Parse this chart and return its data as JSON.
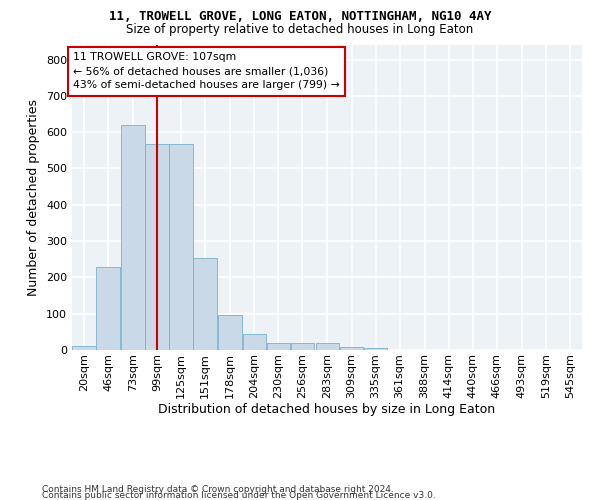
{
  "title": "11, TROWELL GROVE, LONG EATON, NOTTINGHAM, NG10 4AY",
  "subtitle": "Size of property relative to detached houses in Long Eaton",
  "xlabel": "Distribution of detached houses by size in Long Eaton",
  "ylabel": "Number of detached properties",
  "bar_color": "#c9d9e8",
  "bar_edge_color": "#7ab0cc",
  "background_color": "#edf2f7",
  "grid_color": "#ffffff",
  "annotation_line_color": "#cc0000",
  "annotation_box_color": "#cc0000",
  "property_line_x": 99,
  "annotation_text_line1": "11 TROWELL GROVE: 107sqm",
  "annotation_text_line2": "← 56% of detached houses are smaller (1,036)",
  "annotation_text_line3": "43% of semi-detached houses are larger (799) →",
  "footnote_line1": "Contains HM Land Registry data © Crown copyright and database right 2024.",
  "footnote_line2": "Contains public sector information licensed under the Open Government Licence v3.0.",
  "bin_centers": [
    20,
    46,
    73,
    99,
    125,
    151,
    178,
    204,
    230,
    256,
    283,
    309,
    335,
    361,
    388,
    414,
    440,
    466,
    493,
    519,
    545
  ],
  "bar_heights": [
    10,
    228,
    620,
    567,
    567,
    253,
    97,
    43,
    20,
    20,
    18,
    8,
    5,
    0,
    0,
    0,
    0,
    0,
    0,
    0,
    0
  ],
  "bin_width": 26,
  "ylim": [
    0,
    840
  ],
  "yticks": [
    0,
    100,
    200,
    300,
    400,
    500,
    600,
    700,
    800
  ],
  "tick_fontsize": 8,
  "ylabel_fontsize": 9,
  "xlabel_fontsize": 9,
  "title_fontsize": 9,
  "subtitle_fontsize": 8.5,
  "footnote_fontsize": 6.5
}
